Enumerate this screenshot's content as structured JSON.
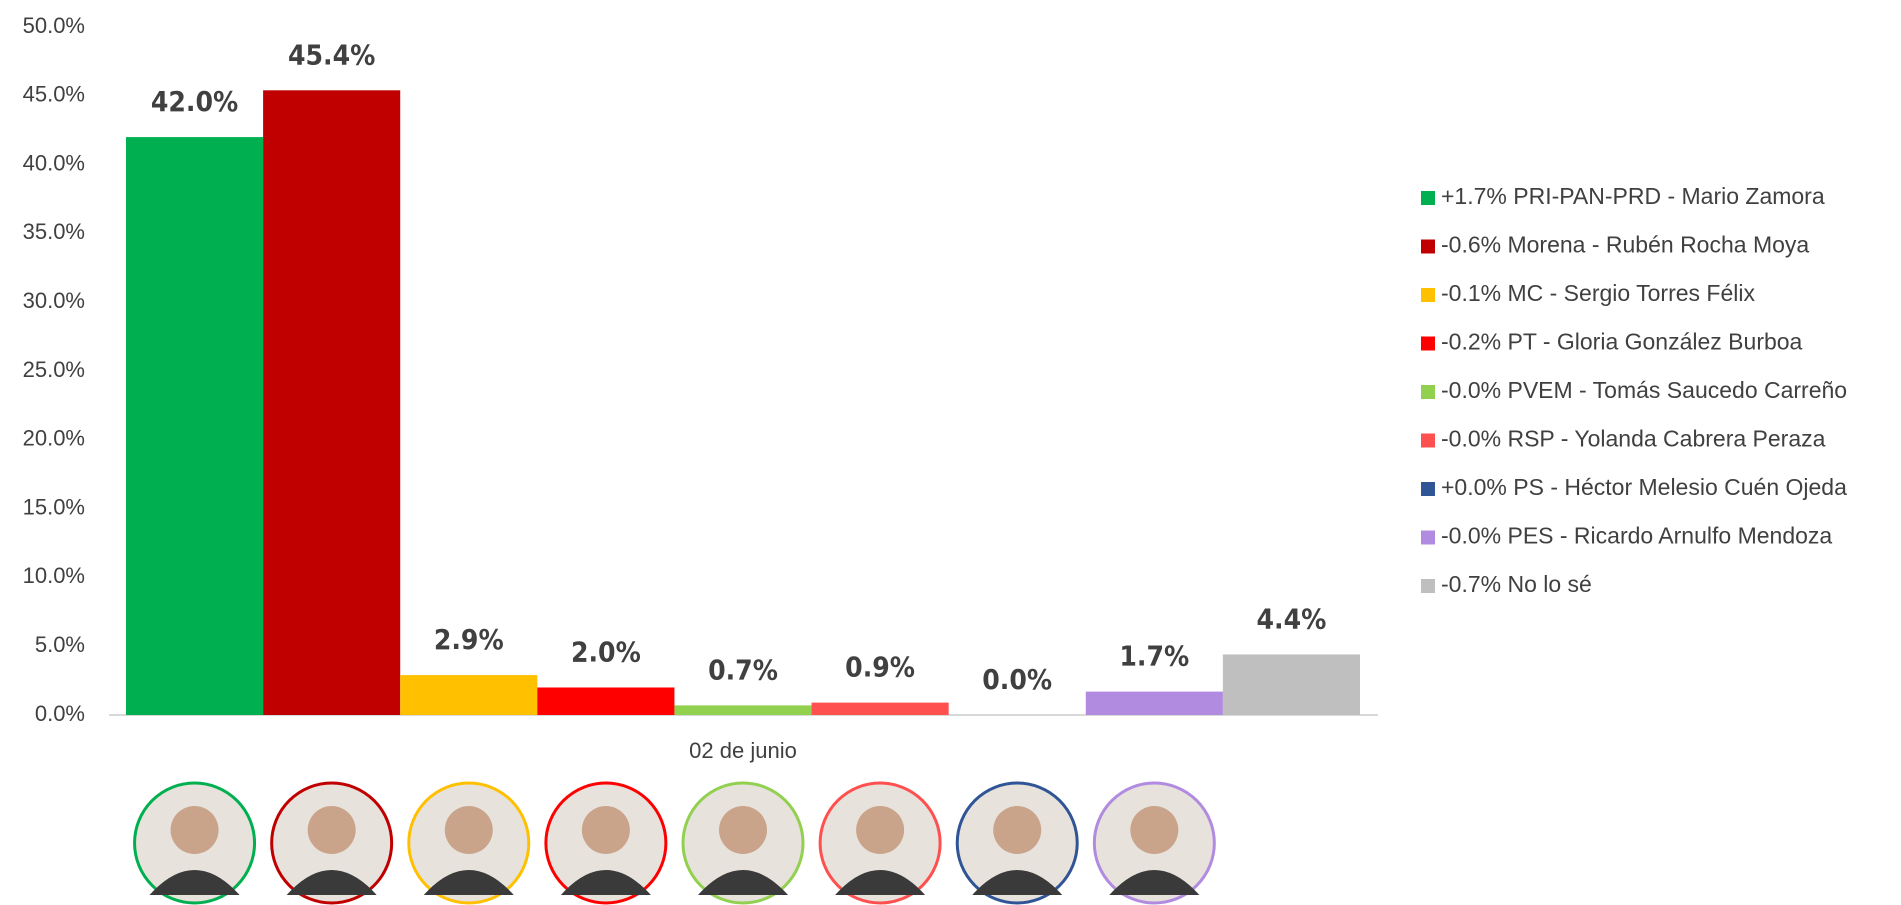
{
  "chart_data": {
    "type": "bar",
    "categories": [
      "02 de junio"
    ],
    "series": [
      {
        "name": "+1.7% PRI-PAN-PRD - Mario Zamora",
        "color": "#00b050",
        "values": [
          42.0
        ],
        "value_labels": [
          "42.0%"
        ]
      },
      {
        "name": "-0.6% Morena - Rubén Rocha Moya",
        "color": "#c00000",
        "values": [
          45.4
        ],
        "value_labels": [
          "45.4%"
        ]
      },
      {
        "name": "-0.1% MC - Sergio Torres Félix",
        "color": "#ffc000",
        "values": [
          2.9
        ],
        "value_labels": [
          "2.9%"
        ]
      },
      {
        "name": "-0.2% PT - Gloria González Burboa",
        "color": "#ff0000",
        "values": [
          2.0
        ],
        "value_labels": [
          "2.0%"
        ]
      },
      {
        "name": "-0.0% PVEM - Tomás Saucedo Carreño",
        "color": "#92d050",
        "values": [
          0.7
        ],
        "value_labels": [
          "0.7%"
        ]
      },
      {
        "name": "-0.0% RSP - Yolanda Cabrera Peraza",
        "color": "#ff5050",
        "values": [
          0.9
        ],
        "value_labels": [
          "0.9%"
        ]
      },
      {
        "name": "+0.0% PS - Héctor Melesio Cuén Ojeda",
        "color": "#2f5597",
        "values": [
          0.0
        ],
        "value_labels": [
          "0.0%"
        ]
      },
      {
        "name": "-0.0% PES - Ricardo Arnulfo Mendoza",
        "color": "#b18be0",
        "values": [
          1.7
        ],
        "value_labels": [
          "1.7%"
        ]
      },
      {
        "name": "-0.7% No lo sé",
        "color": "#bfbfbf",
        "values": [
          4.4
        ],
        "value_labels": [
          "4.4%"
        ]
      }
    ],
    "ylim": [
      0,
      50
    ],
    "yticks": [
      {
        "value": 0,
        "label": "0.0%"
      },
      {
        "value": 5,
        "label": "5.0%"
      },
      {
        "value": 10,
        "label": "10.0%"
      },
      {
        "value": 15,
        "label": "15.0%"
      },
      {
        "value": 20,
        "label": "20.0%"
      },
      {
        "value": 25,
        "label": "25.0%"
      },
      {
        "value": 30,
        "label": "30.0%"
      },
      {
        "value": 35,
        "label": "35.0%"
      },
      {
        "value": 40,
        "label": "40.0%"
      },
      {
        "value": 45,
        "label": "45.0%"
      },
      {
        "value": 50,
        "label": "50.0%"
      }
    ],
    "legend": "right"
  }
}
